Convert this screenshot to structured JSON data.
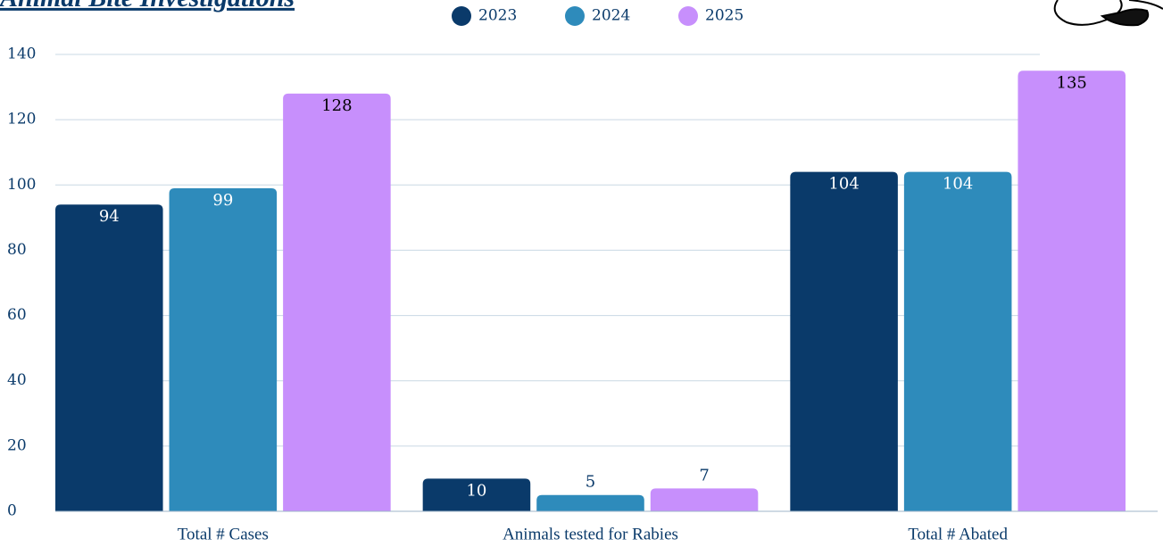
{
  "chart_data": {
    "type": "bar",
    "title": "Animal Bite Investigations",
    "categories": [
      "Total # Cases",
      "Animals tested for Rabies",
      "Total # Abated"
    ],
    "series": [
      {
        "name": "2023",
        "color": "#0a3a6a",
        "values": [
          94,
          10,
          104
        ]
      },
      {
        "name": "2024",
        "color": "#2e8bbb",
        "values": [
          99,
          5,
          104
        ]
      },
      {
        "name": "2025",
        "color": "#c78ffc",
        "values": [
          128,
          7,
          135
        ]
      }
    ],
    "ylim": [
      0,
      140
    ],
    "yticks": [
      0,
      20,
      40,
      60,
      80,
      100,
      120,
      140
    ],
    "grid": true
  }
}
